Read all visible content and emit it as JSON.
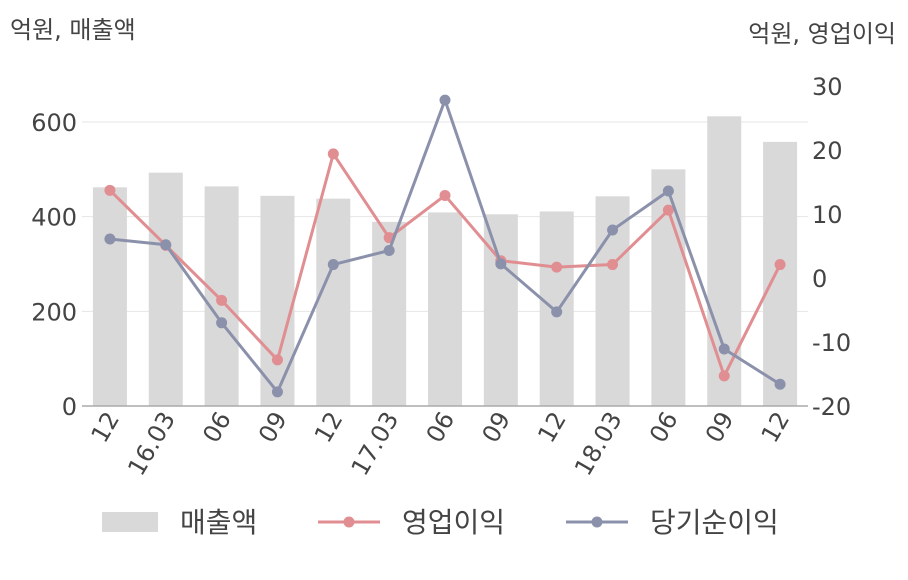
{
  "chart_data": {
    "type": "bar",
    "categories": [
      "12",
      "16.03",
      "06",
      "09",
      "12",
      "17.03",
      "06",
      "09",
      "12",
      "18.03",
      "06",
      "09",
      "12"
    ],
    "left_axis": {
      "unit_label": "억원, 매출액",
      "ylim": [
        0,
        700
      ],
      "ticks": [
        0,
        200,
        400,
        600
      ]
    },
    "right_axis": {
      "unit_label": "억원, 영업이익",
      "ylim": [
        -20,
        30
      ],
      "ticks": [
        -20,
        -10,
        0,
        10,
        20,
        30
      ]
    },
    "series": [
      {
        "name": "매출액",
        "type": "bar",
        "axis": "left",
        "color": "#d9d9d9",
        "values": [
          462,
          493,
          464,
          444,
          438,
          389,
          409,
          405,
          411,
          443,
          500,
          612,
          558
        ]
      },
      {
        "name": "영업이익",
        "type": "line",
        "axis": "right",
        "color": "#e08e91",
        "values": [
          13.7,
          5.1,
          -3.5,
          -12.8,
          19.4,
          6.3,
          12.9,
          2.7,
          1.7,
          2.1,
          10.6,
          -15.3,
          2.1
        ]
      },
      {
        "name": "당기순이익",
        "type": "line",
        "axis": "right",
        "color": "#8b91ab",
        "values": [
          6.1,
          5.2,
          -7.0,
          -17.8,
          2.1,
          4.3,
          27.8,
          2.2,
          -5.3,
          7.5,
          13.6,
          -11.1,
          -16.6
        ]
      }
    ],
    "grid": true,
    "legend_position": "bottom"
  }
}
